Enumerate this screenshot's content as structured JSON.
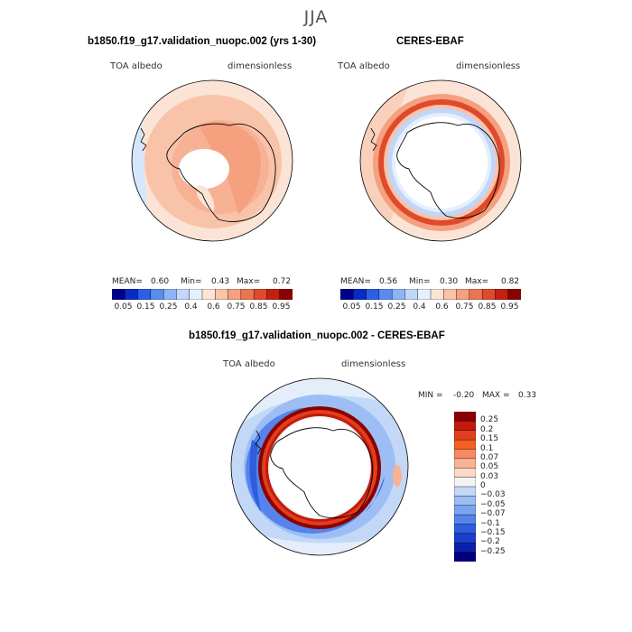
{
  "season": "JJA",
  "panels": {
    "left": {
      "title": "b1850.f19_g17.validation_nuopc.002 (yrs 1-30)",
      "variable": "TOA albedo",
      "units": "dimensionless",
      "stats": {
        "mean_label": "MEAN=",
        "mean": "0.60",
        "min_label": "Min=",
        "min": "0.43",
        "max_label": "Max=",
        "max": "0.72"
      }
    },
    "right": {
      "title": "CERES-EBAF",
      "variable": "TOA albedo",
      "units": "dimensionless",
      "stats": {
        "mean_label": "MEAN=",
        "mean": "0.56",
        "min_label": "Min=",
        "min": "0.30",
        "max_label": "Max=",
        "max": "0.82"
      }
    },
    "diff": {
      "title": "b1850.f19_g17.validation_nuopc.002 - CERES-EBAF",
      "variable": "TOA albedo",
      "units": "dimensionless",
      "minmax": {
        "min_label": "MIN =",
        "min": "-0.20",
        "max_label": "MAX =",
        "max": "0.33"
      }
    }
  },
  "colorbar_top": {
    "colors": [
      "#00008b",
      "#0a2ac8",
      "#2c5fe4",
      "#5a8cf0",
      "#8fb4f6",
      "#c0d6fb",
      "#e6effc",
      "#fbe3d6",
      "#f9c3a9",
      "#f5a07e",
      "#ec7551",
      "#df4a2b",
      "#c32012",
      "#8b0000"
    ],
    "ticks": [
      "0.05",
      "0.15",
      "0.25",
      "0.4",
      "0.6",
      "0.75",
      "0.85",
      "0.95"
    ]
  },
  "colorbar_diff": {
    "colors": [
      "#8b0000",
      "#c31a0d",
      "#e03e1c",
      "#f56020",
      "#f88862",
      "#f9b294",
      "#fcd8c6",
      "#f4f4f4",
      "#c3d8f7",
      "#9dbef5",
      "#7aa4f0",
      "#5484ec",
      "#2e5ddd",
      "#1a3fcc",
      "#0a22aa",
      "#00007f"
    ],
    "labels": [
      "0.25",
      "0.2",
      "0.15",
      "0.1",
      "0.07",
      "0.05",
      "0.03",
      "0",
      "−0.03",
      "−0.05",
      "−0.07",
      "−0.1",
      "−0.15",
      "−0.2",
      "−0.25"
    ]
  }
}
